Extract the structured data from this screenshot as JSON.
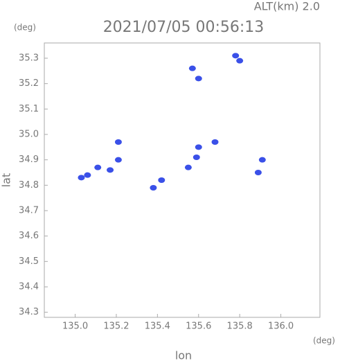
{
  "chart_data": {
    "type": "scatter",
    "header": "ALT(km) 2.0",
    "title": "2021/07/05 00:56:13",
    "y_unit": "(deg)",
    "x_unit": "(deg)",
    "x_label": "lon",
    "y_label": "lat",
    "xlim": [
      134.85,
      136.19
    ],
    "ylim": [
      34.28,
      35.36
    ],
    "xticks": [
      {
        "value": 135,
        "label": "135.0"
      },
      135.2,
      135.4,
      135.6,
      135.8,
      {
        "value": 136,
        "label": "136.0"
      }
    ],
    "yticks": [
      34.3,
      34.4,
      34.5,
      34.6,
      34.7,
      34.8,
      34.9,
      {
        "value": 35,
        "label": "35.0"
      },
      35.1,
      35.2,
      35.3
    ],
    "series": [
      {
        "color": "#3a50e8",
        "x": [
          135.78,
          135.8,
          135.57,
          135.6,
          135.21,
          135.21,
          135.11,
          135.06,
          135.03,
          135.17,
          135.42,
          135.38,
          135.59,
          135.6,
          135.55,
          135.68,
          135.91,
          135.89
        ],
        "y": [
          35.31,
          35.29,
          35.26,
          35.22,
          34.97,
          34.9,
          34.87,
          34.84,
          34.83,
          34.86,
          34.82,
          34.79,
          34.91,
          34.95,
          34.87,
          34.97,
          34.9,
          34.85
        ]
      }
    ]
  }
}
